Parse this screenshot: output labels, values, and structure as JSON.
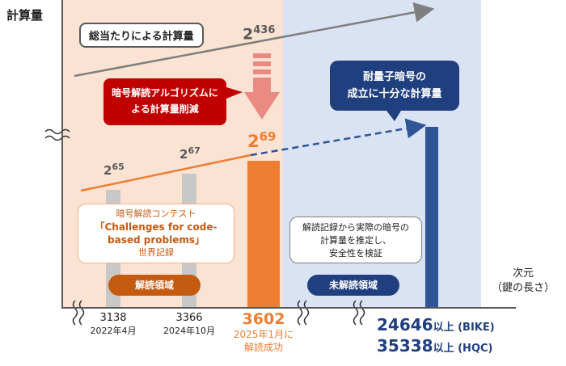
{
  "y_axis_label": "計算量",
  "x_axis_label": [
    "次元",
    "（鍵の長さ）"
  ],
  "callouts": {
    "brute_force": "総当たりによる計算量",
    "reduction_line1": "暗号解読アルゴリズムに",
    "reduction_line2": "よる計算量削減",
    "quantum_line1": "耐量子暗号の",
    "quantum_line2": "成立に十分な計算量",
    "contest_line1": "暗号解読コンテスト",
    "contest_line2": "「Challenges for code-",
    "contest_line3": "based problems」",
    "contest_line4": "世界記録",
    "estimate_line1": "解読記録から実際の暗号の",
    "estimate_line2": "計算量を推定し、",
    "estimate_line3": "安全性を検証"
  },
  "regions": {
    "solved_label": "解読領域",
    "unsolved_label": "未解読領域"
  },
  "powers": {
    "base": "2",
    "p436": "436",
    "p65": "65",
    "p67": "67",
    "p69": "69"
  },
  "ticks": [
    {
      "value": "3138",
      "date": "2022年4月"
    },
    {
      "value": "3366",
      "date": "2024年10月"
    }
  ],
  "highlight_tick": {
    "value": "3602",
    "line1": "2025年1月に",
    "line2": "解読成功"
  },
  "targets": [
    {
      "value": "24646",
      "suffix": "以上 (BIKE)"
    },
    {
      "value": "35338",
      "suffix": "以上 (HQC)"
    }
  ],
  "colors": {
    "solved_bg": "#fbe3d4",
    "unsolved_bg": "#dae3f3",
    "orange": "#ed7d31",
    "red": "#c00000",
    "navy": "#1f3f7f",
    "gray": "#c8c8c8"
  }
}
